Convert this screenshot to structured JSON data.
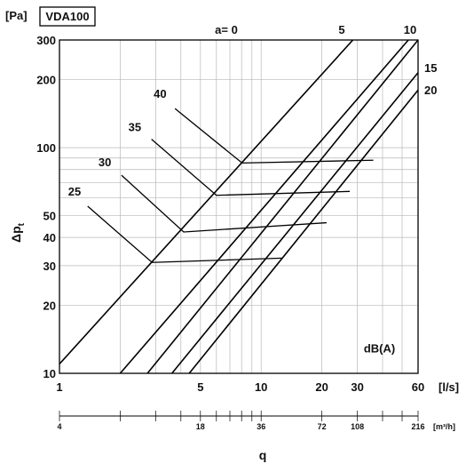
{
  "chart_data": {
    "type": "line",
    "unit_label": "[Pa]",
    "model": "VDA100",
    "xlabel": "q",
    "ylabel": "Δp",
    "ylabel_sub": "t",
    "x_unit": "[l/s]",
    "x2_unit": "[m³/h]",
    "xscale": "log",
    "yscale": "log",
    "xlim": [
      1,
      60
    ],
    "ylim": [
      10,
      300
    ],
    "grid": true,
    "x_ticks": [
      {
        "v": 1,
        "label": "1"
      },
      {
        "v": 5,
        "label": "5"
      },
      {
        "v": 10,
        "label": "10"
      },
      {
        "v": 20,
        "label": "20"
      },
      {
        "v": 30,
        "label": "30"
      },
      {
        "v": 60,
        "label": "60"
      }
    ],
    "y_ticks": [
      {
        "v": 10,
        "label": "10"
      },
      {
        "v": 20,
        "label": "20"
      },
      {
        "v": 30,
        "label": "30"
      },
      {
        "v": 40,
        "label": "40"
      },
      {
        "v": 50,
        "label": "50"
      },
      {
        "v": 100,
        "label": "100"
      },
      {
        "v": 200,
        "label": "200"
      },
      {
        "v": 300,
        "label": "300"
      }
    ],
    "x2_ticks": [
      {
        "v": 4,
        "label": "4"
      },
      {
        "v": 18,
        "label": "18"
      },
      {
        "v": 36,
        "label": "36"
      },
      {
        "v": 72,
        "label": "72"
      },
      {
        "v": 108,
        "label": "108"
      },
      {
        "v": 216,
        "label": "216"
      }
    ],
    "series": [
      {
        "name": "a= 0",
        "x": [
          1,
          28.5
        ],
        "y": [
          11,
          300
        ]
      },
      {
        "name": "5",
        "x": [
          2,
          53.7
        ],
        "y": [
          10,
          300
        ]
      },
      {
        "name": "10",
        "x": [
          2.73,
          60
        ],
        "y": [
          10,
          300
        ]
      },
      {
        "name": "15",
        "x": [
          3.61,
          60
        ],
        "y": [
          10,
          215
        ]
      },
      {
        "name": "20",
        "x": [
          4.4,
          60
        ],
        "y": [
          10,
          180
        ]
      }
    ],
    "sound_series": [
      {
        "name": "25",
        "x": [
          1.38,
          2.88,
          12.8
        ],
        "y": [
          55,
          31,
          32.4
        ]
      },
      {
        "name": "30",
        "x": [
          2.03,
          4.13,
          21.1
        ],
        "y": [
          75.5,
          42.3,
          46.5
        ]
      },
      {
        "name": "35",
        "x": [
          2.86,
          6.0,
          27.5
        ],
        "y": [
          109,
          61.5,
          64
        ]
      },
      {
        "name": "40",
        "x": [
          3.74,
          8.05,
          36
        ],
        "y": [
          149,
          85.5,
          88
        ]
      }
    ],
    "annotations": [
      {
        "label": "dB(A)",
        "x": 35,
        "y": 12.5
      }
    ]
  }
}
